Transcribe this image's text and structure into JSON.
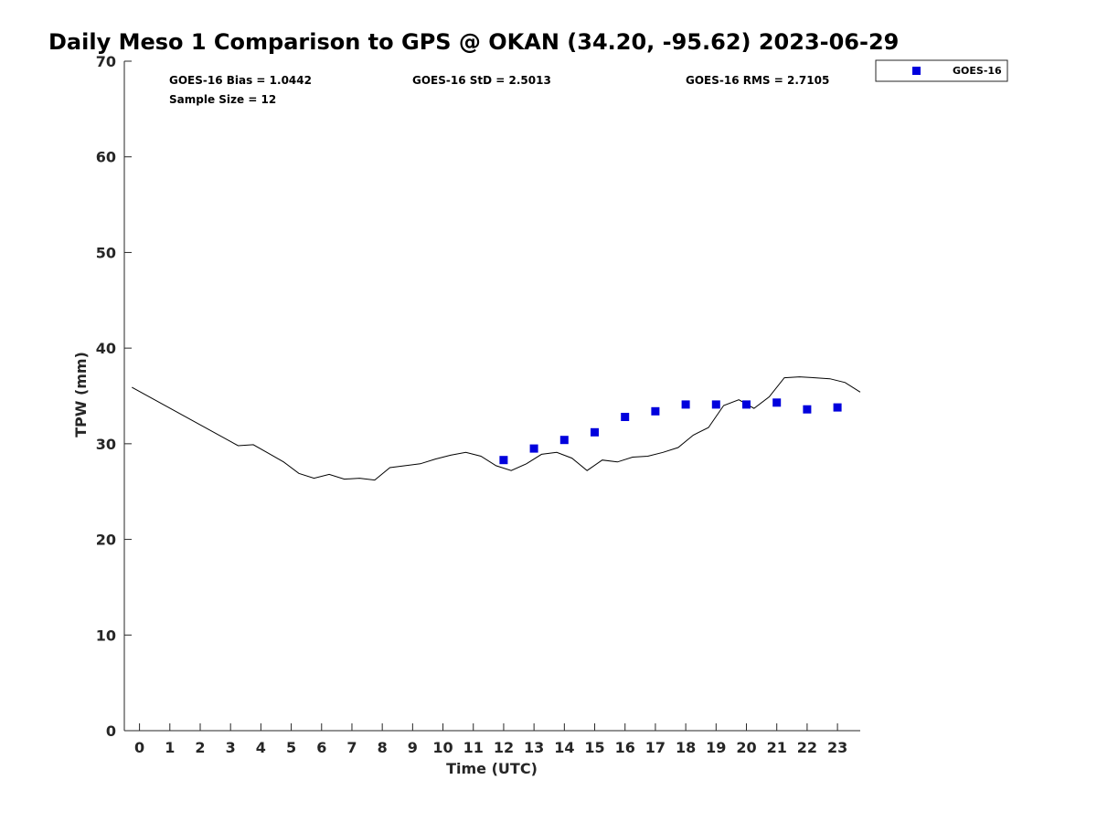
{
  "chart_data": {
    "type": "scatter",
    "title": "Daily Meso 1 Comparison to GPS @ OKAN (34.20, -95.62) 2023-06-29",
    "xlabel": "Time (UTC)",
    "ylabel": "TPW (mm)",
    "xlim": [
      -0.5,
      23.75
    ],
    "ylim": [
      0,
      70
    ],
    "x_ticks": [
      "0",
      "1",
      "2",
      "3",
      "4",
      "5",
      "6",
      "7",
      "8",
      "9",
      "10",
      "11",
      "12",
      "13",
      "14",
      "15",
      "16",
      "17",
      "18",
      "19",
      "20",
      "21",
      "22",
      "23"
    ],
    "y_ticks": [
      "0",
      "10",
      "20",
      "30",
      "40",
      "50",
      "60",
      "70"
    ],
    "grid": false,
    "legend_position": "top-right",
    "stats": {
      "bias": "GOES-16 Bias = 1.0442",
      "std": "GOES-16 StD = 2.5013",
      "rms": "GOES-16 RMS = 2.7105",
      "sample": "Sample Size = 12"
    },
    "series": [
      {
        "type": "line",
        "color": "#000000",
        "x": [
          -0.25,
          3.25,
          3.75,
          4.25,
          4.75,
          5.25,
          5.75,
          6.25,
          6.75,
          7.25,
          7.75,
          8.25,
          8.75,
          9.25,
          9.75,
          10.25,
          10.75,
          11.25,
          11.75,
          12.25,
          12.75,
          13.25,
          13.75,
          14.25,
          14.75,
          15.25,
          15.75,
          16.25,
          16.75,
          17.25,
          17.75,
          18.25,
          18.75,
          19.25,
          19.75,
          20.25,
          20.75,
          21.25,
          21.75,
          22.25,
          22.75,
          23.25,
          23.75
        ],
        "y": [
          35.9,
          29.8,
          29.9,
          29.0,
          28.1,
          26.9,
          26.4,
          26.8,
          26.3,
          26.4,
          26.2,
          27.5,
          27.7,
          27.9,
          28.4,
          28.8,
          29.1,
          28.7,
          27.7,
          27.2,
          27.9,
          28.9,
          29.1,
          28.5,
          27.2,
          28.3,
          28.1,
          28.6,
          28.7,
          29.1,
          29.6,
          30.9,
          31.7,
          34.0,
          34.6,
          33.7,
          34.9,
          36.9,
          37.0,
          36.9,
          36.8,
          36.4,
          35.4
        ]
      },
      {
        "name": "GOES-16",
        "type": "scatter",
        "color": "#0000dd",
        "x": [
          12,
          13,
          14,
          15,
          16,
          17,
          18,
          19,
          20,
          21,
          22,
          23
        ],
        "y": [
          28.3,
          29.5,
          30.4,
          31.2,
          32.8,
          33.4,
          34.1,
          34.1,
          34.1,
          34.3,
          33.6,
          33.8
        ]
      }
    ]
  }
}
